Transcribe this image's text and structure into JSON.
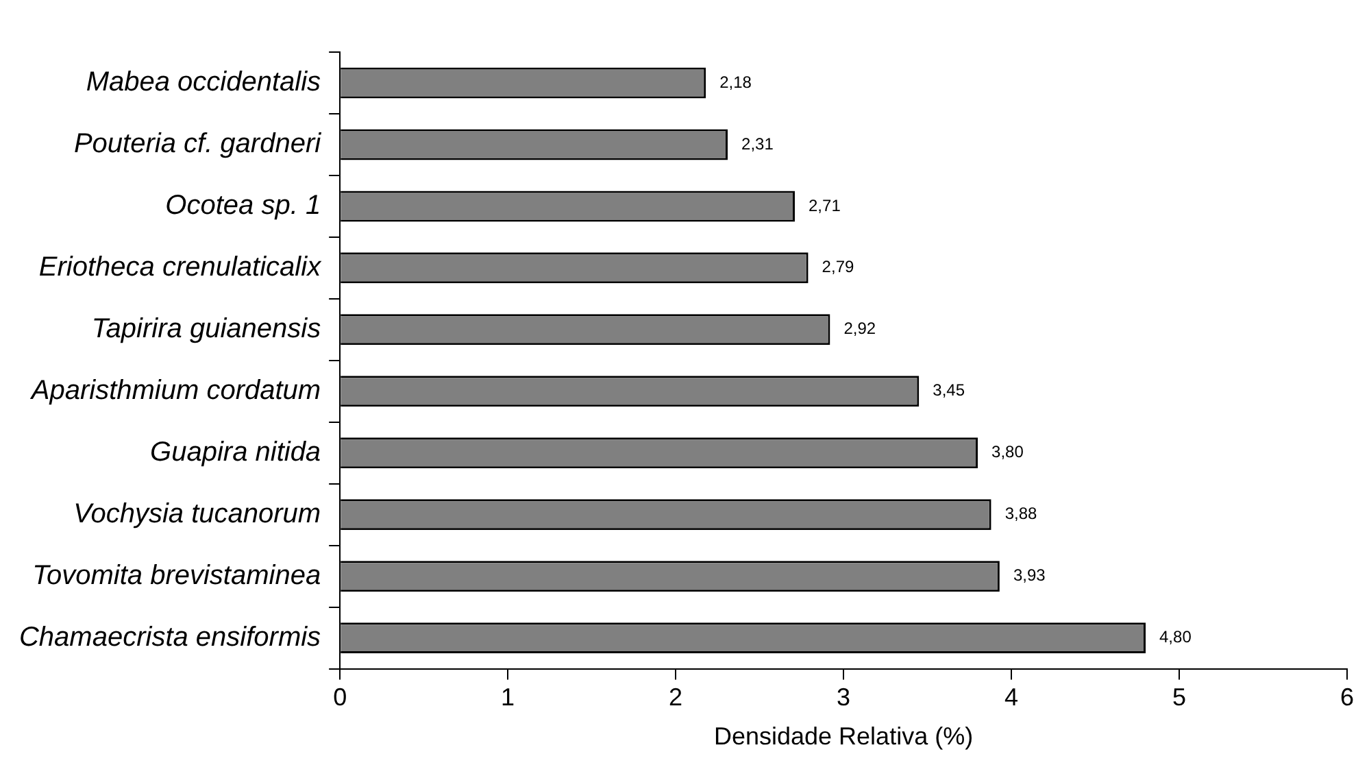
{
  "chart_data": {
    "type": "bar",
    "orientation": "horizontal",
    "xlabel": "Densidade Relativa (%)",
    "categories": [
      "Mabea occidentalis",
      "Pouteria cf. gardneri",
      "Ocotea sp. 1",
      "Eriotheca crenulaticalix",
      "Tapirira guianensis",
      "Aparisthmium cordatum",
      "Guapira nitida",
      "Vochysia tucanorum",
      "Tovomita brevistaminea",
      "Chamaecrista ensiformis"
    ],
    "values": [
      2.18,
      2.31,
      2.71,
      2.79,
      2.92,
      3.45,
      3.8,
      3.88,
      3.93,
      4.8
    ],
    "value_labels": [
      "2,18",
      "2,31",
      "2,71",
      "2,79",
      "2,92",
      "3,45",
      "3,80",
      "3,88",
      "3,93",
      "4,80"
    ],
    "color": "#808080",
    "xlim": [
      0,
      6
    ],
    "xticks": [
      0,
      1,
      2,
      3,
      4,
      5,
      6
    ],
    "grid": false,
    "legend": false
  }
}
